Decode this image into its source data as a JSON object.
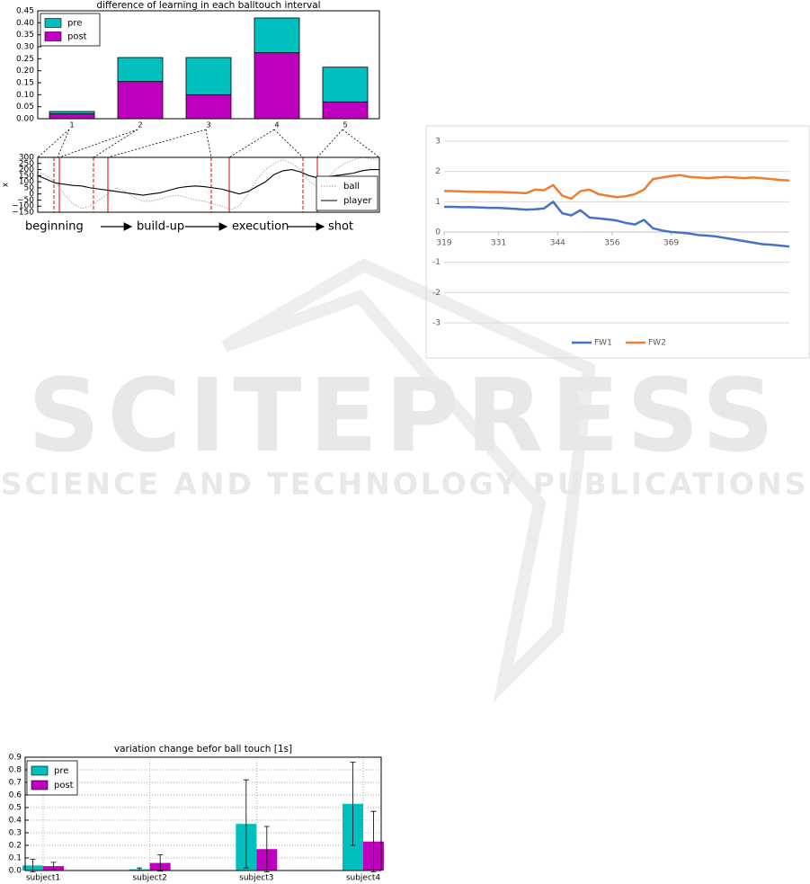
{
  "watermark": {
    "title": "SCITEPRESS",
    "subtitle": "SCIENCE AND TECHNOLOGY PUBLICATIONS"
  },
  "chart_data": [
    {
      "type": "stacked_bar",
      "title": "difference of learning in each balltouch interval",
      "categories": [
        "1",
        "2",
        "3",
        "4",
        "5"
      ],
      "series": [
        {
          "name": "pre",
          "color": "#00bfbf",
          "values": [
            0.01,
            0.1,
            0.155,
            0.145,
            0.145
          ]
        },
        {
          "name": "post",
          "color": "#bf00bf",
          "values": [
            0.02,
            0.155,
            0.1,
            0.275,
            0.07
          ]
        }
      ],
      "ylim": [
        0,
        0.45
      ],
      "yticks": [
        {
          "value": 0,
          "label": "0.00"
        },
        {
          "value": 0.05,
          "label": "0.05"
        },
        {
          "value": 0.1,
          "label": "0.10"
        },
        {
          "value": 0.15,
          "label": "0.15"
        },
        {
          "value": 0.2,
          "label": "0.20"
        },
        {
          "value": 0.25,
          "label": "0.25"
        },
        {
          "value": 0.3,
          "label": "0.30"
        },
        {
          "value": 0.35,
          "label": "0.35"
        },
        {
          "value": 0.4,
          "label": "0.40"
        },
        {
          "value": 0.45,
          "label": "0.45"
        }
      ],
      "legend": "upper left",
      "grid": false
    },
    {
      "type": "line",
      "y_label": "x",
      "series": [
        {
          "name": "ball",
          "color": "#999999",
          "values": [
            180,
            150,
            100,
            0,
            -80,
            -120,
            -100,
            -50,
            0,
            50,
            20,
            -30,
            -60,
            -60,
            -40,
            -20,
            -10,
            -30,
            -50,
            -60,
            -80,
            -100,
            -130,
            -100,
            0,
            120,
            200,
            250,
            280,
            250,
            200,
            100,
            60,
            120,
            200,
            250,
            280,
            300,
            290,
            280
          ]
        },
        {
          "name": "player",
          "color": "#000000",
          "values": [
            150,
            120,
            90,
            80,
            70,
            65,
            50,
            40,
            30,
            20,
            10,
            0,
            -10,
            0,
            10,
            30,
            50,
            60,
            65,
            60,
            50,
            40,
            20,
            0,
            20,
            60,
            100,
            160,
            190,
            200,
            180,
            150,
            130,
            140,
            150,
            160,
            170,
            190,
            200,
            200
          ]
        }
      ],
      "ylim": [
        -150,
        300
      ],
      "yticks": [
        {
          "value": 300,
          "label": "300"
        },
        {
          "value": 250,
          "label": "250"
        },
        {
          "value": 200,
          "label": "200"
        },
        {
          "value": 150,
          "label": "150"
        },
        {
          "value": 100,
          "label": "100"
        },
        {
          "value": 50,
          "label": "50"
        },
        {
          "value": 0,
          "label": "0"
        },
        {
          "value": -50,
          "label": "−50"
        },
        {
          "value": -100,
          "label": "−100"
        },
        {
          "value": -150,
          "label": "−150"
        }
      ],
      "legend": "lower right",
      "annotations": [
        "beginning",
        "build-up",
        "execution",
        "shot"
      ]
    },
    {
      "type": "line_xy",
      "x": [
        319,
        321,
        323,
        325,
        327,
        329,
        331,
        333,
        335,
        337,
        339,
        341,
        343,
        345,
        347,
        349,
        351,
        353,
        355,
        357,
        359,
        361,
        363,
        365,
        367,
        369,
        371,
        373,
        375,
        377,
        379,
        381,
        383,
        385,
        387,
        389,
        391,
        393,
        395
      ],
      "series": [
        {
          "name": "FW1",
          "color": "#4472c4",
          "values": [
            0.83,
            0.83,
            0.82,
            0.82,
            0.81,
            0.8,
            0.8,
            0.78,
            0.76,
            0.74,
            0.75,
            0.78,
            1.0,
            0.62,
            0.55,
            0.72,
            0.48,
            0.45,
            0.42,
            0.38,
            0.3,
            0.25,
            0.4,
            0.12,
            0.05,
            0,
            -0.02,
            -0.05,
            -0.1,
            -0.12,
            -0.15,
            -0.2,
            -0.25,
            -0.3,
            -0.35,
            -0.4,
            -0.42,
            -0.45,
            -0.48
          ]
        },
        {
          "name": "FW2",
          "color": "#ed7d31",
          "values": [
            1.35,
            1.35,
            1.34,
            1.33,
            1.33,
            1.32,
            1.32,
            1.31,
            1.3,
            1.28,
            1.4,
            1.38,
            1.55,
            1.2,
            1.1,
            1.35,
            1.4,
            1.25,
            1.2,
            1.15,
            1.18,
            1.25,
            1.4,
            1.75,
            1.8,
            1.85,
            1.88,
            1.82,
            1.8,
            1.78,
            1.8,
            1.82,
            1.8,
            1.78,
            1.8,
            1.78,
            1.75,
            1.72,
            1.7
          ]
        }
      ],
      "xlim": [
        319,
        395
      ],
      "xticks": [
        319,
        331,
        344,
        356,
        369
      ],
      "ylim": [
        -3,
        3
      ],
      "yticks": [
        3,
        2,
        1,
        0,
        -1,
        -2,
        -3
      ],
      "legend": "bottom",
      "grid": true
    },
    {
      "type": "grouped_bar",
      "title": "variation change befor ball touch [1s]",
      "categories": [
        "subject1",
        "subject2",
        "subject3",
        "subject4"
      ],
      "series": [
        {
          "name": "pre",
          "color": "#00bfbf",
          "values": [
            0.04,
            0.01,
            0.37,
            0.53
          ],
          "errors": [
            0.05,
            0.01,
            0.35,
            0.33
          ]
        },
        {
          "name": "post",
          "color": "#bf00bf",
          "values": [
            0.035,
            0.06,
            0.17,
            0.23
          ],
          "errors": [
            0.03,
            0.065,
            0.18,
            0.24
          ]
        }
      ],
      "ylim": [
        0,
        0.9
      ],
      "yticks": [
        {
          "value": 0,
          "label": "0.0"
        },
        {
          "value": 0.1,
          "label": "0.1"
        },
        {
          "value": 0.2,
          "label": "0.2"
        },
        {
          "value": 0.3,
          "label": "0.3"
        },
        {
          "value": 0.4,
          "label": "0.4"
        },
        {
          "value": 0.5,
          "label": "0.5"
        },
        {
          "value": 0.6,
          "label": "0.6"
        },
        {
          "value": 0.7,
          "label": "0.7"
        },
        {
          "value": 0.8,
          "label": "0.8"
        },
        {
          "value": 0.9,
          "label": "0.9"
        }
      ],
      "legend": "upper left",
      "grid": true
    }
  ]
}
